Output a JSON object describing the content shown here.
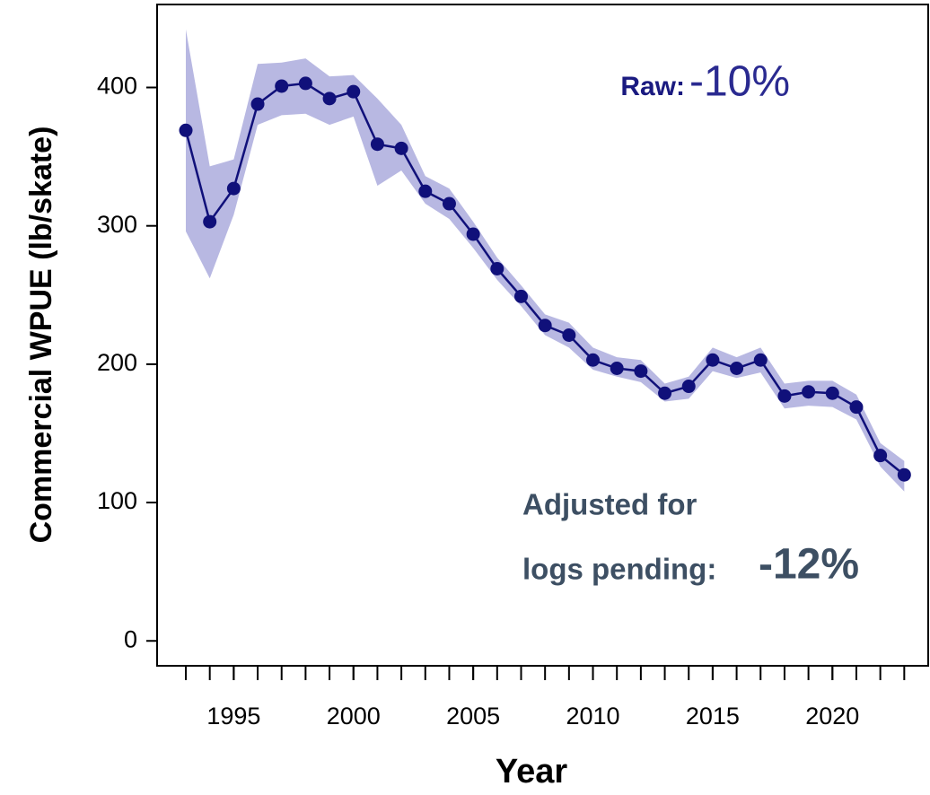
{
  "chart_data": {
    "type": "line",
    "y_label": "Commercial WPUE (lb/skate)",
    "x_label": "Year",
    "x": [
      1993,
      1994,
      1995,
      1996,
      1997,
      1998,
      1999,
      2000,
      2001,
      2002,
      2003,
      2004,
      2005,
      2006,
      2007,
      2008,
      2009,
      2010,
      2011,
      2012,
      2013,
      2014,
      2015,
      2016,
      2017,
      2018,
      2019,
      2020,
      2021,
      2022,
      2023
    ],
    "series": [
      {
        "color": "#10107a",
        "band_color": "#b8b8e2",
        "values": [
          369,
          303,
          327,
          388,
          401,
          403,
          392,
          397,
          359,
          356,
          325,
          316,
          294,
          269,
          249,
          228,
          221,
          203,
          197,
          195,
          179,
          184,
          203,
          197,
          203,
          177,
          180,
          179,
          169,
          134,
          120
        ],
        "lower": [
          296,
          262,
          308,
          373,
          380,
          381,
          373,
          379,
          329,
          340,
          316,
          305,
          284,
          261,
          242,
          221,
          212,
          196,
          191,
          187,
          173,
          175,
          195,
          190,
          194,
          168,
          170,
          169,
          160,
          126,
          108
        ],
        "upper": [
          442,
          343,
          348,
          417,
          418,
          421,
          408,
          409,
          392,
          373,
          336,
          327,
          303,
          277,
          257,
          236,
          230,
          212,
          205,
          203,
          186,
          191,
          212,
          205,
          212,
          186,
          188,
          188,
          178,
          143,
          130
        ]
      }
    ],
    "xlim": [
      1991.8,
      2024.0
    ],
    "ylim": [
      -18,
      460
    ],
    "xticks": [
      1995,
      2000,
      2005,
      2010,
      2015,
      2020
    ],
    "xticks_minor": [
      1993,
      1994,
      1995,
      1996,
      1997,
      1998,
      1999,
      2000,
      2001,
      2002,
      2003,
      2004,
      2005,
      2006,
      2007,
      2008,
      2009,
      2010,
      2011,
      2012,
      2013,
      2014,
      2015,
      2016,
      2017,
      2018,
      2019,
      2020,
      2021,
      2022,
      2023
    ],
    "yticks": [
      0,
      100,
      200,
      300,
      400
    ],
    "annotations": [
      {
        "text": "Raw:",
        "color": "#1a1a80"
      },
      {
        "text": "-10%",
        "color": "#2a2a90"
      },
      {
        "text": "Adjusted for",
        "color": "#3d4f63"
      },
      {
        "text": "logs pending:",
        "color": "#3d4f63"
      },
      {
        "text": "-12%",
        "color": "#3d4f63"
      }
    ]
  }
}
